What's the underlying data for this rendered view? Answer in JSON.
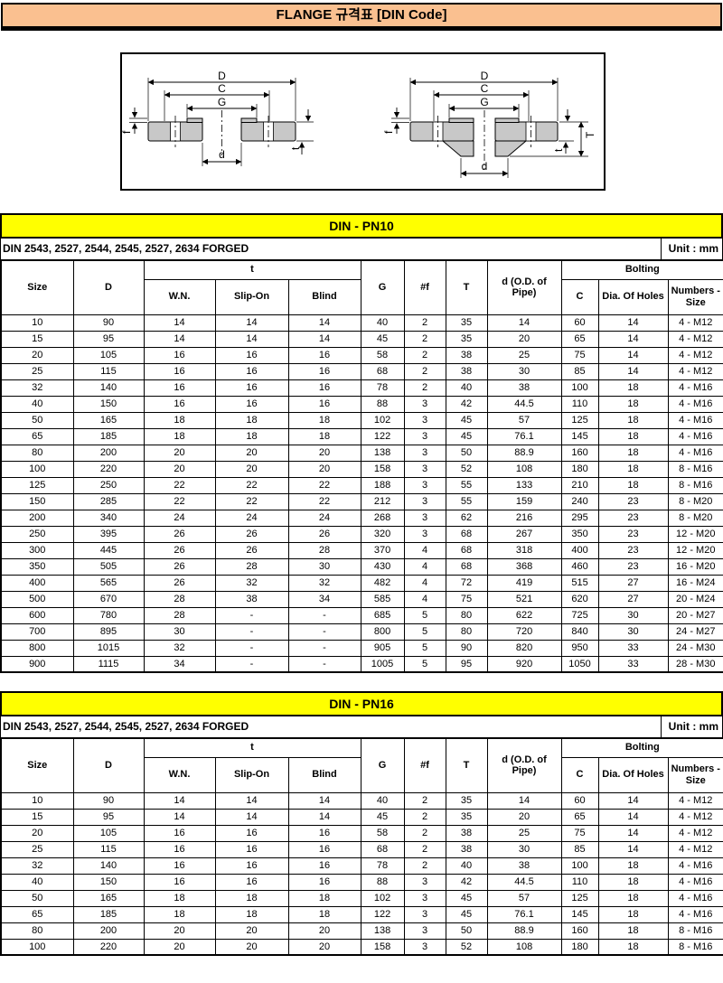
{
  "title": "FLANGE 규격표  [DIN Code]",
  "colors": {
    "title_bg": "#FAC090",
    "section_band_bg": "#FFFF00",
    "drawing_metal_fill": "#C8C8C8",
    "text": "#000000"
  },
  "diagram": {
    "left_type": "slip-on-flange-cross-section",
    "right_type": "weld-neck-flange-cross-section",
    "labels": {
      "D": "D",
      "C": "C",
      "G": "G",
      "d": "d",
      "f": "f",
      "t": "t",
      "T": "T"
    }
  },
  "table_header": {
    "size": "Size",
    "d_outer": "D",
    "t_group": "t",
    "wn": "W.N.",
    "slip_on": "Slip-On",
    "blind": "Blind",
    "g": "G",
    "num_f": "#f",
    "t_cap": "T",
    "d_od_pipe": "d (O.D. of Pipe)",
    "bolting": "Bolting",
    "c": "C",
    "dia_of_holes": "Dia. Of Holes",
    "numbers_size": "Numbers - Size"
  },
  "sections": [
    {
      "heading": "DIN - PN10",
      "standard_note": "DIN 2543, 2527, 2544, 2545, 2527, 2634 FORGED",
      "unit_note": "Unit : mm",
      "rows": [
        [
          "10",
          "90",
          "14",
          "14",
          "14",
          "40",
          "2",
          "35",
          "14",
          "60",
          "14",
          "4 - M12"
        ],
        [
          "15",
          "95",
          "14",
          "14",
          "14",
          "45",
          "2",
          "35",
          "20",
          "65",
          "14",
          "4 - M12"
        ],
        [
          "20",
          "105",
          "16",
          "16",
          "16",
          "58",
          "2",
          "38",
          "25",
          "75",
          "14",
          "4 - M12"
        ],
        [
          "25",
          "115",
          "16",
          "16",
          "16",
          "68",
          "2",
          "38",
          "30",
          "85",
          "14",
          "4 - M12"
        ],
        [
          "32",
          "140",
          "16",
          "16",
          "16",
          "78",
          "2",
          "40",
          "38",
          "100",
          "18",
          "4 - M16"
        ],
        [
          "40",
          "150",
          "16",
          "16",
          "16",
          "88",
          "3",
          "42",
          "44.5",
          "110",
          "18",
          "4 - M16"
        ],
        [
          "50",
          "165",
          "18",
          "18",
          "18",
          "102",
          "3",
          "45",
          "57",
          "125",
          "18",
          "4 - M16"
        ],
        [
          "65",
          "185",
          "18",
          "18",
          "18",
          "122",
          "3",
          "45",
          "76.1",
          "145",
          "18",
          "4 - M16"
        ],
        [
          "80",
          "200",
          "20",
          "20",
          "20",
          "138",
          "3",
          "50",
          "88.9",
          "160",
          "18",
          "4 - M16"
        ],
        [
          "100",
          "220",
          "20",
          "20",
          "20",
          "158",
          "3",
          "52",
          "108",
          "180",
          "18",
          "8 - M16"
        ],
        [
          "125",
          "250",
          "22",
          "22",
          "22",
          "188",
          "3",
          "55",
          "133",
          "210",
          "18",
          "8 - M16"
        ],
        [
          "150",
          "285",
          "22",
          "22",
          "22",
          "212",
          "3",
          "55",
          "159",
          "240",
          "23",
          "8 - M20"
        ],
        [
          "200",
          "340",
          "24",
          "24",
          "24",
          "268",
          "3",
          "62",
          "216",
          "295",
          "23",
          "8 - M20"
        ],
        [
          "250",
          "395",
          "26",
          "26",
          "26",
          "320",
          "3",
          "68",
          "267",
          "350",
          "23",
          "12 - M20"
        ],
        [
          "300",
          "445",
          "26",
          "26",
          "28",
          "370",
          "4",
          "68",
          "318",
          "400",
          "23",
          "12 - M20"
        ],
        [
          "350",
          "505",
          "26",
          "28",
          "30",
          "430",
          "4",
          "68",
          "368",
          "460",
          "23",
          "16 - M20"
        ],
        [
          "400",
          "565",
          "26",
          "32",
          "32",
          "482",
          "4",
          "72",
          "419",
          "515",
          "27",
          "16 - M24"
        ],
        [
          "500",
          "670",
          "28",
          "38",
          "34",
          "585",
          "4",
          "75",
          "521",
          "620",
          "27",
          "20 - M24"
        ],
        [
          "600",
          "780",
          "28",
          "-",
          "-",
          "685",
          "5",
          "80",
          "622",
          "725",
          "30",
          "20 - M27"
        ],
        [
          "700",
          "895",
          "30",
          "-",
          "-",
          "800",
          "5",
          "80",
          "720",
          "840",
          "30",
          "24 - M27"
        ],
        [
          "800",
          "1015",
          "32",
          "-",
          "-",
          "905",
          "5",
          "90",
          "820",
          "950",
          "33",
          "24 - M30"
        ],
        [
          "900",
          "1115",
          "34",
          "-",
          "-",
          "1005",
          "5",
          "95",
          "920",
          "1050",
          "33",
          "28 - M30"
        ]
      ]
    },
    {
      "heading": "DIN - PN16",
      "standard_note": "DIN 2543, 2527, 2544, 2545, 2527, 2634 FORGED",
      "unit_note": "Unit : mm",
      "rows": [
        [
          "10",
          "90",
          "14",
          "14",
          "14",
          "40",
          "2",
          "35",
          "14",
          "60",
          "14",
          "4 - M12"
        ],
        [
          "15",
          "95",
          "14",
          "14",
          "14",
          "45",
          "2",
          "35",
          "20",
          "65",
          "14",
          "4 - M12"
        ],
        [
          "20",
          "105",
          "16",
          "16",
          "16",
          "58",
          "2",
          "38",
          "25",
          "75",
          "14",
          "4 - M12"
        ],
        [
          "25",
          "115",
          "16",
          "16",
          "16",
          "68",
          "2",
          "38",
          "30",
          "85",
          "14",
          "4 - M12"
        ],
        [
          "32",
          "140",
          "16",
          "16",
          "16",
          "78",
          "2",
          "40",
          "38",
          "100",
          "18",
          "4 - M16"
        ],
        [
          "40",
          "150",
          "16",
          "16",
          "16",
          "88",
          "3",
          "42",
          "44.5",
          "110",
          "18",
          "4 - M16"
        ],
        [
          "50",
          "165",
          "18",
          "18",
          "18",
          "102",
          "3",
          "45",
          "57",
          "125",
          "18",
          "4 - M16"
        ],
        [
          "65",
          "185",
          "18",
          "18",
          "18",
          "122",
          "3",
          "45",
          "76.1",
          "145",
          "18",
          "4 - M16"
        ],
        [
          "80",
          "200",
          "20",
          "20",
          "20",
          "138",
          "3",
          "50",
          "88.9",
          "160",
          "18",
          "8 - M16"
        ],
        [
          "100",
          "220",
          "20",
          "20",
          "20",
          "158",
          "3",
          "52",
          "108",
          "180",
          "18",
          "8 - M16"
        ]
      ]
    }
  ]
}
